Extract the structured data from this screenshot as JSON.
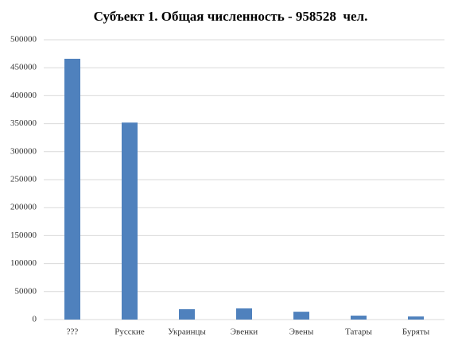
{
  "chart_data": {
    "type": "bar",
    "title": "Субъект 1. Общая численность - 958528  чел.",
    "categories": [
      "???",
      "Русские",
      "Украинцы",
      "Эвенки",
      "Эвены",
      "Татары",
      "Буряты"
    ],
    "values": [
      466000,
      352000,
      18500,
      20000,
      14000,
      7000,
      5500
    ],
    "color": "#4f81bd",
    "ylim": [
      0,
      500000
    ],
    "yticks": [
      0,
      50000,
      100000,
      150000,
      200000,
      250000,
      300000,
      350000,
      400000,
      450000,
      500000
    ],
    "grid": true
  }
}
